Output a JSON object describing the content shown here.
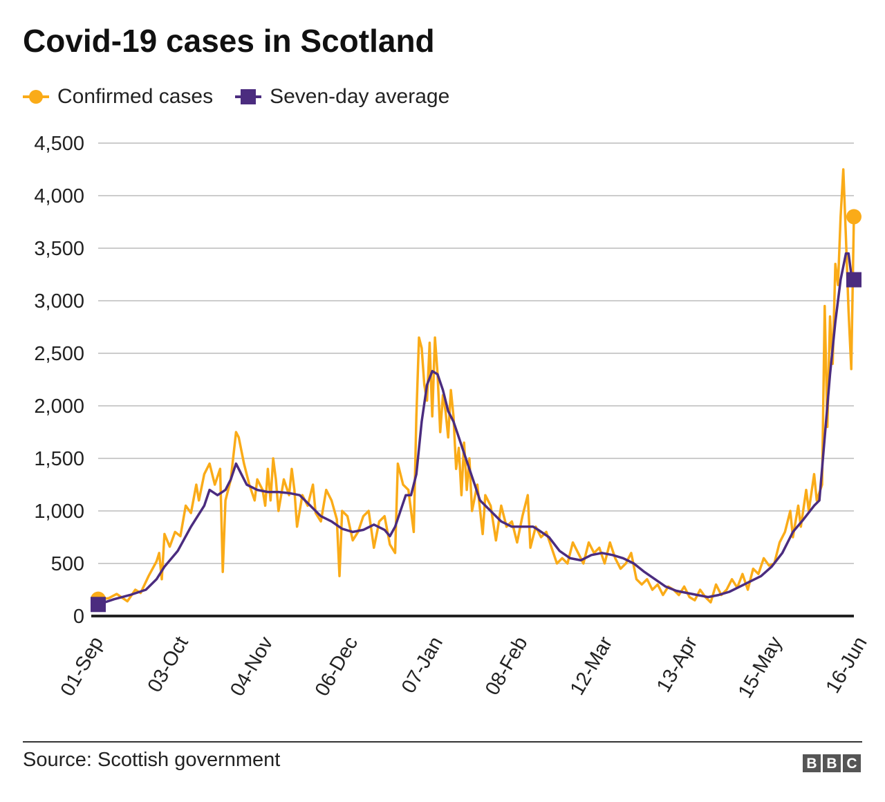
{
  "header": {
    "title": "Covid-19 cases in Scotland"
  },
  "legend": [
    {
      "label": "Confirmed cases",
      "color": "#FAAB18",
      "marker": "circle"
    },
    {
      "label": "Seven-day average",
      "color": "#4B2C7F",
      "marker": "square"
    }
  ],
  "footer": {
    "source": "Source: Scottish government",
    "logo": [
      "B",
      "B",
      "C"
    ]
  },
  "chart_data": {
    "type": "line",
    "title": "Covid-19 cases in Scotland",
    "xlabel": "",
    "ylabel": "",
    "start_date": "2020-09-01",
    "x_ticks": [
      "01-Sep",
      "03-Oct",
      "04-Nov",
      "06-Dec",
      "07-Jan",
      "08-Feb",
      "12-Mar",
      "13-Apr",
      "15-May",
      "16-Jun"
    ],
    "y_ticks": [
      "0",
      "500",
      "1,000",
      "1,500",
      "2,000",
      "2,500",
      "3,000",
      "3,500",
      "4,000",
      "4,500"
    ],
    "ylim": [
      0,
      4500
    ],
    "grid": true,
    "legend_position": "top-left",
    "series": [
      {
        "name": "Confirmed cases",
        "color": "#FAAB18",
        "keypoints": [
          [
            0,
            160
          ],
          [
            4,
            170
          ],
          [
            7,
            210
          ],
          [
            11,
            140
          ],
          [
            14,
            250
          ],
          [
            16,
            220
          ],
          [
            19,
            380
          ],
          [
            22,
            520
          ],
          [
            23,
            600
          ],
          [
            24,
            350
          ],
          [
            25,
            780
          ],
          [
            27,
            660
          ],
          [
            29,
            800
          ],
          [
            31,
            760
          ],
          [
            33,
            1050
          ],
          [
            35,
            980
          ],
          [
            37,
            1250
          ],
          [
            38,
            1100
          ],
          [
            40,
            1350
          ],
          [
            42,
            1450
          ],
          [
            44,
            1250
          ],
          [
            46,
            1400
          ],
          [
            47,
            420
          ],
          [
            48,
            1100
          ],
          [
            50,
            1300
          ],
          [
            52,
            1750
          ],
          [
            53,
            1700
          ],
          [
            55,
            1450
          ],
          [
            57,
            1250
          ],
          [
            59,
            1100
          ],
          [
            60,
            1300
          ],
          [
            62,
            1200
          ],
          [
            63,
            1050
          ],
          [
            64,
            1400
          ],
          [
            65,
            1100
          ],
          [
            66,
            1500
          ],
          [
            67,
            1300
          ],
          [
            68,
            1000
          ],
          [
            70,
            1300
          ],
          [
            72,
            1150
          ],
          [
            73,
            1400
          ],
          [
            74,
            1200
          ],
          [
            75,
            850
          ],
          [
            77,
            1150
          ],
          [
            79,
            1050
          ],
          [
            81,
            1250
          ],
          [
            82,
            980
          ],
          [
            84,
            900
          ],
          [
            86,
            1200
          ],
          [
            88,
            1100
          ],
          [
            90,
            920
          ],
          [
            91,
            380
          ],
          [
            92,
            1000
          ],
          [
            94,
            950
          ],
          [
            96,
            720
          ],
          [
            98,
            800
          ],
          [
            100,
            950
          ],
          [
            102,
            1000
          ],
          [
            104,
            650
          ],
          [
            106,
            900
          ],
          [
            108,
            950
          ],
          [
            110,
            680
          ],
          [
            112,
            600
          ],
          [
            113,
            1450
          ],
          [
            115,
            1250
          ],
          [
            117,
            1200
          ],
          [
            119,
            800
          ],
          [
            120,
            1900
          ],
          [
            121,
            2650
          ],
          [
            122,
            2550
          ],
          [
            123,
            2200
          ],
          [
            124,
            2050
          ],
          [
            125,
            2600
          ],
          [
            126,
            1900
          ],
          [
            127,
            2650
          ],
          [
            128,
            2300
          ],
          [
            129,
            1750
          ],
          [
            130,
            2100
          ],
          [
            131,
            1950
          ],
          [
            132,
            1700
          ],
          [
            133,
            2150
          ],
          [
            134,
            1900
          ],
          [
            135,
            1400
          ],
          [
            136,
            1600
          ],
          [
            137,
            1150
          ],
          [
            138,
            1650
          ],
          [
            139,
            1200
          ],
          [
            140,
            1500
          ],
          [
            141,
            1000
          ],
          [
            143,
            1250
          ],
          [
            145,
            780
          ],
          [
            146,
            1150
          ],
          [
            148,
            1050
          ],
          [
            150,
            720
          ],
          [
            152,
            1050
          ],
          [
            154,
            850
          ],
          [
            156,
            900
          ],
          [
            158,
            700
          ],
          [
            160,
            950
          ],
          [
            162,
            1150
          ],
          [
            163,
            650
          ],
          [
            165,
            850
          ],
          [
            167,
            750
          ],
          [
            169,
            800
          ],
          [
            171,
            650
          ],
          [
            173,
            500
          ],
          [
            175,
            550
          ],
          [
            177,
            500
          ],
          [
            179,
            700
          ],
          [
            181,
            600
          ],
          [
            183,
            500
          ],
          [
            185,
            700
          ],
          [
            187,
            600
          ],
          [
            189,
            650
          ],
          [
            191,
            500
          ],
          [
            193,
            700
          ],
          [
            195,
            550
          ],
          [
            197,
            450
          ],
          [
            199,
            500
          ],
          [
            201,
            600
          ],
          [
            203,
            350
          ],
          [
            205,
            300
          ],
          [
            207,
            350
          ],
          [
            209,
            250
          ],
          [
            211,
            300
          ],
          [
            213,
            200
          ],
          [
            215,
            280
          ],
          [
            217,
            250
          ],
          [
            219,
            200
          ],
          [
            221,
            280
          ],
          [
            223,
            180
          ],
          [
            225,
            150
          ],
          [
            227,
            250
          ],
          [
            229,
            180
          ],
          [
            231,
            130
          ],
          [
            233,
            300
          ],
          [
            235,
            200
          ],
          [
            237,
            250
          ],
          [
            239,
            350
          ],
          [
            241,
            270
          ],
          [
            243,
            400
          ],
          [
            245,
            250
          ],
          [
            247,
            450
          ],
          [
            249,
            400
          ],
          [
            251,
            550
          ],
          [
            253,
            480
          ],
          [
            255,
            500
          ],
          [
            257,
            700
          ],
          [
            259,
            800
          ],
          [
            261,
            1000
          ],
          [
            262,
            750
          ],
          [
            264,
            1050
          ],
          [
            265,
            850
          ],
          [
            267,
            1200
          ],
          [
            268,
            1000
          ],
          [
            270,
            1350
          ],
          [
            271,
            1100
          ],
          [
            273,
            1250
          ],
          [
            274,
            2950
          ],
          [
            275,
            1800
          ],
          [
            276,
            2850
          ],
          [
            277,
            2400
          ],
          [
            278,
            3350
          ],
          [
            279,
            3150
          ],
          [
            280,
            3800
          ],
          [
            281,
            4250
          ],
          [
            282,
            3600
          ],
          [
            283,
            2900
          ],
          [
            284,
            2350
          ],
          [
            285,
            3800
          ]
        ]
      },
      {
        "name": "Seven-day average",
        "color": "#4B2C7F",
        "keypoints": [
          [
            0,
            110
          ],
          [
            6,
            160
          ],
          [
            12,
            200
          ],
          [
            18,
            250
          ],
          [
            22,
            350
          ],
          [
            25,
            470
          ],
          [
            30,
            620
          ],
          [
            35,
            850
          ],
          [
            40,
            1050
          ],
          [
            42,
            1200
          ],
          [
            45,
            1150
          ],
          [
            48,
            1200
          ],
          [
            50,
            1300
          ],
          [
            52,
            1450
          ],
          [
            54,
            1350
          ],
          [
            56,
            1250
          ],
          [
            60,
            1200
          ],
          [
            64,
            1180
          ],
          [
            68,
            1180
          ],
          [
            72,
            1170
          ],
          [
            76,
            1150
          ],
          [
            80,
            1050
          ],
          [
            84,
            950
          ],
          [
            88,
            900
          ],
          [
            92,
            830
          ],
          [
            96,
            800
          ],
          [
            100,
            820
          ],
          [
            104,
            870
          ],
          [
            108,
            820
          ],
          [
            110,
            760
          ],
          [
            112,
            850
          ],
          [
            114,
            1000
          ],
          [
            116,
            1150
          ],
          [
            118,
            1150
          ],
          [
            120,
            1350
          ],
          [
            122,
            1850
          ],
          [
            124,
            2200
          ],
          [
            126,
            2330
          ],
          [
            128,
            2300
          ],
          [
            130,
            2150
          ],
          [
            132,
            1950
          ],
          [
            134,
            1850
          ],
          [
            136,
            1700
          ],
          [
            138,
            1550
          ],
          [
            140,
            1400
          ],
          [
            142,
            1250
          ],
          [
            144,
            1100
          ],
          [
            148,
            1000
          ],
          [
            152,
            900
          ],
          [
            156,
            850
          ],
          [
            160,
            850
          ],
          [
            164,
            850
          ],
          [
            166,
            820
          ],
          [
            170,
            750
          ],
          [
            174,
            620
          ],
          [
            178,
            550
          ],
          [
            182,
            530
          ],
          [
            186,
            580
          ],
          [
            190,
            600
          ],
          [
            194,
            580
          ],
          [
            198,
            550
          ],
          [
            202,
            500
          ],
          [
            206,
            420
          ],
          [
            210,
            350
          ],
          [
            214,
            280
          ],
          [
            218,
            240
          ],
          [
            222,
            220
          ],
          [
            226,
            200
          ],
          [
            230,
            180
          ],
          [
            234,
            200
          ],
          [
            238,
            230
          ],
          [
            242,
            280
          ],
          [
            246,
            330
          ],
          [
            250,
            380
          ],
          [
            254,
            470
          ],
          [
            258,
            600
          ],
          [
            262,
            800
          ],
          [
            266,
            920
          ],
          [
            270,
            1050
          ],
          [
            272,
            1100
          ],
          [
            274,
            1700
          ],
          [
            276,
            2300
          ],
          [
            278,
            2800
          ],
          [
            280,
            3200
          ],
          [
            282,
            3450
          ],
          [
            283,
            3450
          ],
          [
            284,
            3250
          ],
          [
            285,
            3200
          ]
        ]
      }
    ]
  }
}
